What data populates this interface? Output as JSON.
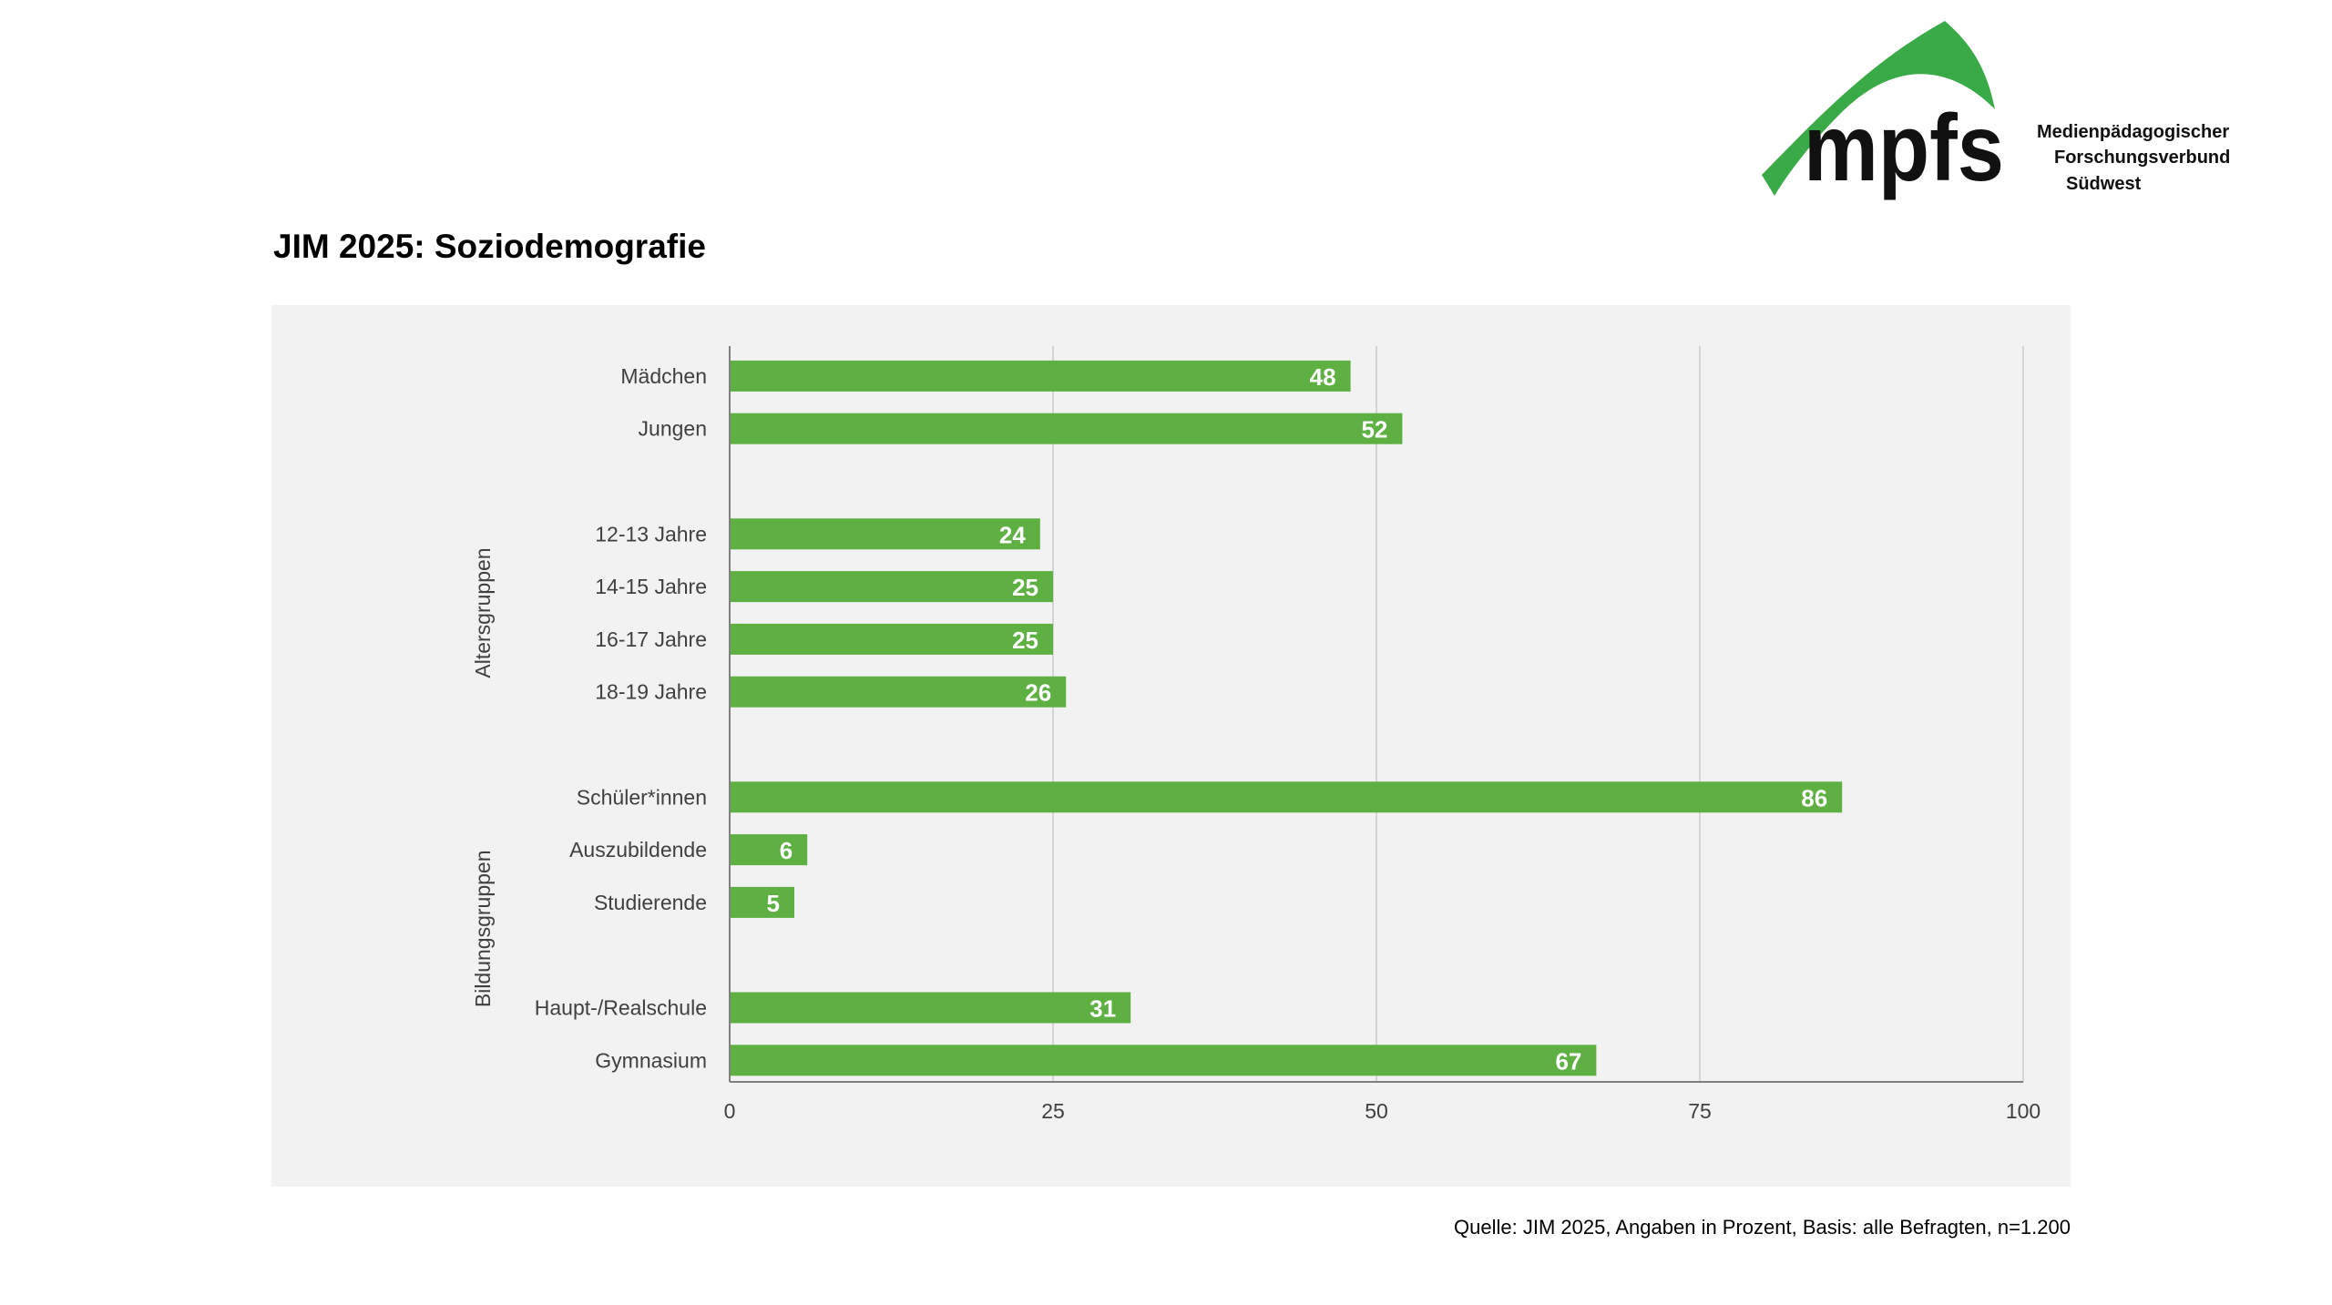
{
  "page": {
    "title": "JIM 2025: Soziodemografie",
    "source": "Quelle: JIM 2025, Angaben in Prozent, Basis: alle Befragten, n=1.200"
  },
  "logo": {
    "wordmark": "mpfs",
    "line1": "Medienpädagogischer",
    "line2": "Forschungsverbund",
    "line3": "Südwest"
  },
  "colors": {
    "bar": "#5eb043",
    "logo_green": "#3aaa48",
    "panel": "#f2f2f2",
    "grid": "#d4d4d4",
    "axis": "#808080",
    "text": "#404040",
    "value_text": "#ffffff"
  },
  "chart_data": {
    "type": "bar",
    "orientation": "horizontal",
    "title": "JIM 2025: Soziodemografie",
    "xlabel": "",
    "ylabel": "",
    "xlim": [
      0,
      100
    ],
    "xticks": [
      0,
      25,
      50,
      75,
      100
    ],
    "grid": true,
    "categories": [
      "Mädchen",
      "Jungen",
      "12-13 Jahre",
      "14-15 Jahre",
      "16-17 Jahre",
      "18-19 Jahre",
      "Schüler*innen",
      "Auszubildende",
      "Studierende",
      "Haupt-/Realschule",
      "Gymnasium"
    ],
    "values": [
      48,
      52,
      24,
      25,
      25,
      26,
      86,
      6,
      5,
      31,
      67
    ],
    "row_slots": [
      0,
      1,
      3,
      4,
      5,
      6,
      8,
      9,
      10,
      12,
      13
    ],
    "slot_count": 14,
    "groups": [
      {
        "label": "Altersgruppen",
        "from_slot": 3,
        "to_slot": 6
      },
      {
        "label": "Bildungsgruppen",
        "from_slot": 8,
        "to_slot": 13
      }
    ]
  }
}
